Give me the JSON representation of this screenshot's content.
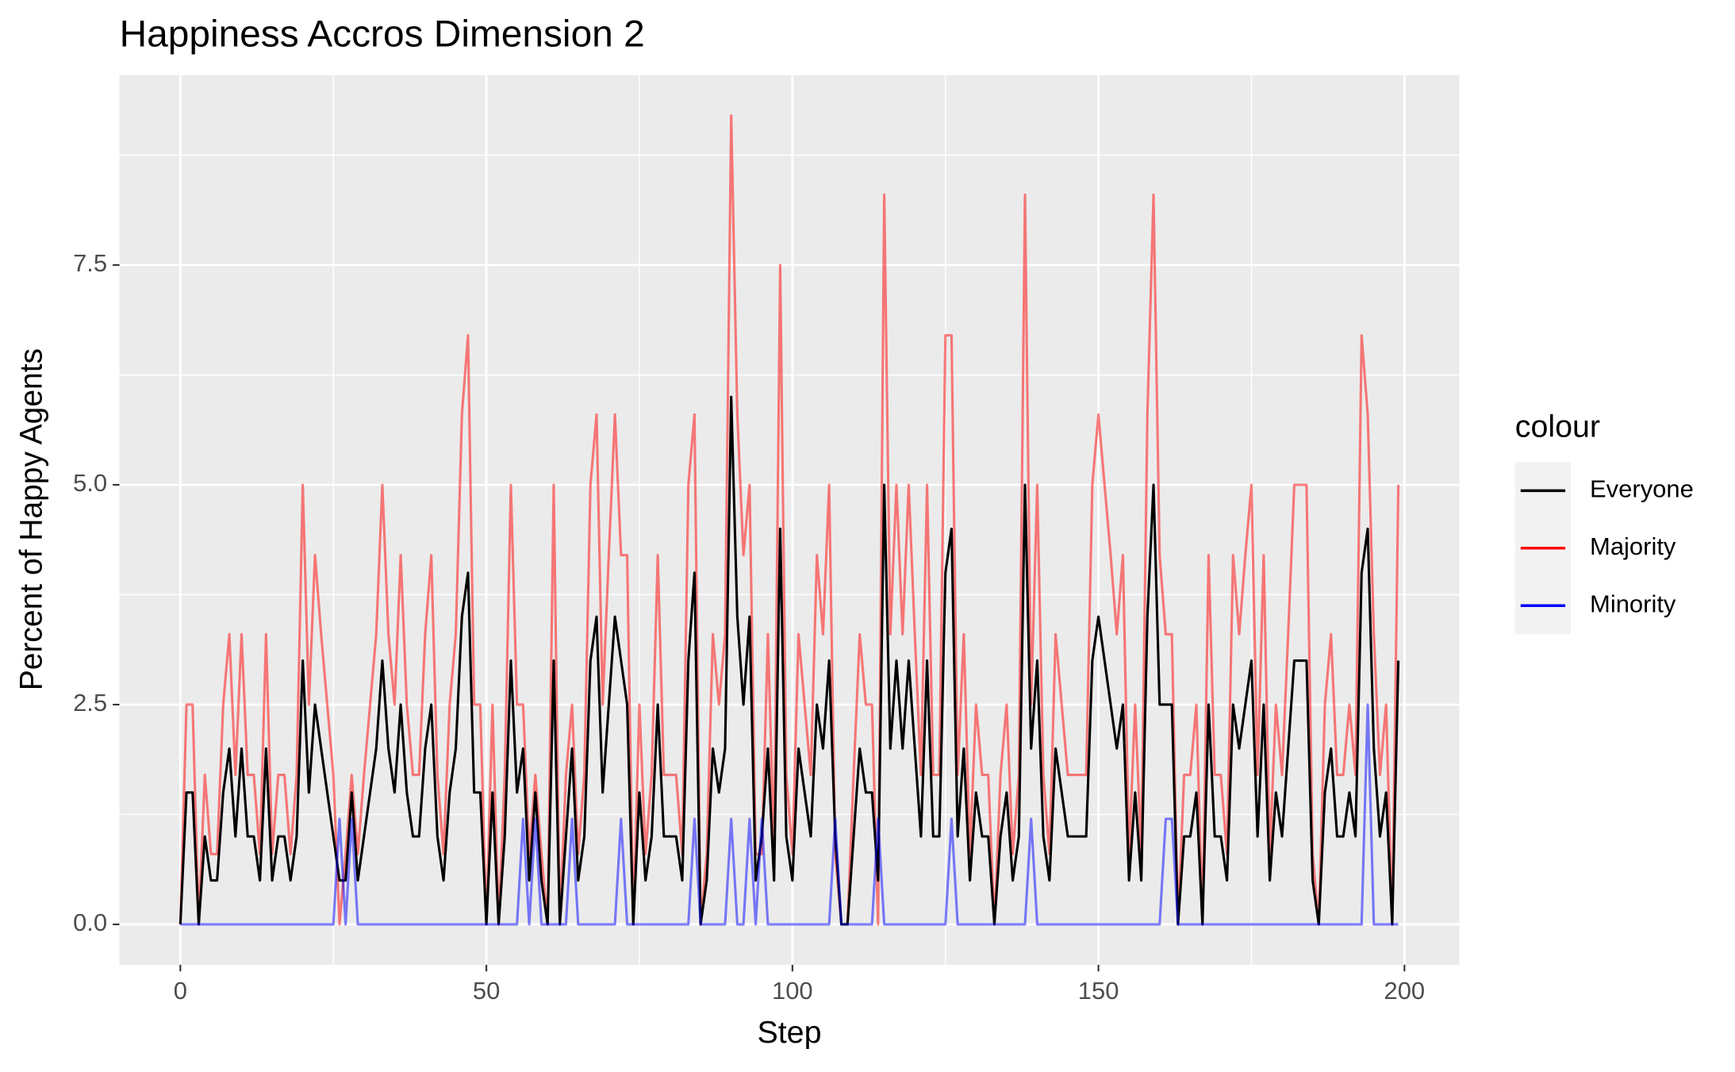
{
  "chart_data": {
    "type": "line",
    "title": "Happiness Accros Dimension 2",
    "xlabel": "Step",
    "ylabel": "Percent of Happy Agents",
    "legend_title": "colour",
    "legend_position": "right",
    "grid": true,
    "xlim": [
      -9.95,
      208.95
    ],
    "ylim": [
      -0.46,
      9.66
    ],
    "xticks": [
      0,
      50,
      100,
      150,
      200
    ],
    "yticks": [
      {
        "value": 0,
        "label": "0.0"
      },
      2.5,
      {
        "value": 5,
        "label": "5.0"
      },
      7.5
    ],
    "x_minor_ticks": [
      25,
      75,
      125,
      175
    ],
    "y_minor_ticks": [
      1.25,
      3.75,
      6.25,
      8.75
    ],
    "x": [
      0,
      1,
      2,
      3,
      4,
      5,
      6,
      7,
      8,
      9,
      10,
      11,
      12,
      13,
      14,
      15,
      16,
      17,
      18,
      19,
      20,
      21,
      22,
      23,
      24,
      25,
      26,
      27,
      28,
      29,
      30,
      31,
      32,
      33,
      34,
      35,
      36,
      37,
      38,
      39,
      40,
      41,
      42,
      43,
      44,
      45,
      46,
      47,
      48,
      49,
      50,
      51,
      52,
      53,
      54,
      55,
      56,
      57,
      58,
      59,
      60,
      61,
      62,
      63,
      64,
      65,
      66,
      67,
      68,
      69,
      70,
      71,
      72,
      73,
      74,
      75,
      76,
      77,
      78,
      79,
      80,
      81,
      82,
      83,
      84,
      85,
      86,
      87,
      88,
      89,
      90,
      91,
      92,
      93,
      94,
      95,
      96,
      97,
      98,
      99,
      100,
      101,
      102,
      103,
      104,
      105,
      106,
      107,
      108,
      109,
      110,
      111,
      112,
      113,
      114,
      115,
      116,
      117,
      118,
      119,
      120,
      121,
      122,
      123,
      124,
      125,
      126,
      127,
      128,
      129,
      130,
      131,
      132,
      133,
      134,
      135,
      136,
      137,
      138,
      139,
      140,
      141,
      142,
      143,
      144,
      145,
      146,
      147,
      148,
      149,
      150,
      151,
      152,
      153,
      154,
      155,
      156,
      157,
      158,
      159,
      160,
      161,
      162,
      163,
      164,
      165,
      166,
      167,
      168,
      169,
      170,
      171,
      172,
      173,
      174,
      175,
      176,
      177,
      178,
      179,
      180,
      181,
      182,
      183,
      184,
      185,
      186,
      187,
      188,
      189,
      190,
      191,
      192,
      193,
      194,
      195,
      196,
      197,
      198,
      199
    ],
    "series": [
      {
        "name": "Majority",
        "color": "#ff0000",
        "opacity": 0.5,
        "values": [
          0,
          2.5,
          2.5,
          0,
          1.7,
          0.8,
          0.8,
          2.5,
          3.3,
          1.7,
          3.3,
          1.7,
          1.7,
          0.8,
          3.3,
          0.8,
          1.7,
          1.7,
          0.8,
          1.7,
          5,
          2.5,
          4.2,
          3.3,
          2.5,
          1.7,
          0,
          0.8,
          1.7,
          0.8,
          1.7,
          2.5,
          3.3,
          5,
          3.3,
          2.5,
          4.2,
          2.5,
          1.7,
          1.7,
          3.3,
          4.2,
          1.7,
          0.8,
          2.5,
          3.3,
          5.8,
          6.7,
          2.5,
          2.5,
          0,
          2.5,
          0,
          1.7,
          5,
          2.5,
          2.5,
          0.8,
          1.7,
          0.8,
          0,
          5,
          0,
          1.7,
          2.5,
          0.8,
          1.7,
          5,
          5.8,
          2.5,
          4.2,
          5.8,
          4.2,
          4.2,
          0,
          2.5,
          0.8,
          1.7,
          4.2,
          1.7,
          1.7,
          1.7,
          0.8,
          5,
          5.8,
          0,
          0.8,
          3.3,
          2.5,
          3.3,
          9.2,
          5.8,
          4.2,
          5,
          0.8,
          0.8,
          3.3,
          0.8,
          7.5,
          1.7,
          0.8,
          3.3,
          2.5,
          1.7,
          4.2,
          3.3,
          5,
          0.8,
          0,
          0,
          1.7,
          3.3,
          2.5,
          2.5,
          0,
          8.3,
          3.3,
          5,
          3.3,
          5,
          3.3,
          1.7,
          5,
          1.7,
          1.7,
          6.7,
          6.7,
          1.7,
          3.3,
          0.8,
          2.5,
          1.7,
          1.7,
          0,
          1.7,
          2.5,
          0.8,
          1.7,
          8.3,
          2.5,
          5,
          1.7,
          0.8,
          3.3,
          2.5,
          1.7,
          1.7,
          1.7,
          1.7,
          5,
          5.8,
          5,
          4.2,
          3.3,
          4.2,
          0.8,
          2.5,
          0.8,
          5.8,
          8.3,
          4.2,
          3.3,
          3.3,
          0,
          1.7,
          1.7,
          2.5,
          0,
          4.2,
          1.7,
          1.7,
          0.8,
          4.2,
          3.3,
          4.2,
          5,
          1.7,
          4.2,
          0.8,
          2.5,
          1.7,
          3.3,
          5,
          5,
          5,
          0.8,
          0,
          2.5,
          3.3,
          1.7,
          1.7,
          2.5,
          1.7,
          6.7,
          5.8,
          3.3,
          1.7,
          2.5,
          0,
          5
        ]
      },
      {
        "name": "Everyone",
        "color": "#000000",
        "opacity": 1,
        "values": [
          0,
          1.5,
          1.5,
          0,
          1,
          0.5,
          0.5,
          1.5,
          2,
          1,
          2,
          1,
          1,
          0.5,
          2,
          0.5,
          1,
          1,
          0.5,
          1,
          3,
          1.5,
          2.5,
          2,
          1.5,
          1,
          0.5,
          0.5,
          1.5,
          0.5,
          1,
          1.5,
          2,
          3,
          2,
          1.5,
          2.5,
          1.5,
          1,
          1,
          2,
          2.5,
          1,
          0.5,
          1.5,
          2,
          3.5,
          4,
          1.5,
          1.5,
          0,
          1.5,
          0,
          1,
          3,
          1.5,
          2,
          0.5,
          1.5,
          0.5,
          0,
          3,
          0,
          1,
          2,
          0.5,
          1,
          3,
          3.5,
          1.5,
          2.5,
          3.5,
          3,
          2.5,
          0,
          1.5,
          0.5,
          1,
          2.5,
          1,
          1,
          1,
          0.5,
          3,
          4,
          0,
          0.5,
          2,
          1.5,
          2,
          6,
          3.5,
          2.5,
          3.5,
          0.5,
          1,
          2,
          0.5,
          4.5,
          1,
          0.5,
          2,
          1.5,
          1,
          2.5,
          2,
          3,
          1,
          0,
          0,
          1,
          2,
          1.5,
          1.5,
          0.5,
          5,
          2,
          3,
          2,
          3,
          2,
          1,
          3,
          1,
          1,
          4,
          4.5,
          1,
          2,
          0.5,
          1.5,
          1,
          1,
          0,
          1,
          1.5,
          0.5,
          1,
          5,
          2,
          3,
          1,
          0.5,
          2,
          1.5,
          1,
          1,
          1,
          1,
          3,
          3.5,
          3,
          2.5,
          2,
          2.5,
          0.5,
          1.5,
          0.5,
          3.5,
          5,
          2.5,
          2.5,
          2.5,
          0,
          1,
          1,
          1.5,
          0,
          2.5,
          1,
          1,
          0.5,
          2.5,
          2,
          2.5,
          3,
          1,
          2.5,
          0.5,
          1.5,
          1,
          2,
          3,
          3,
          3,
          0.5,
          0,
          1.5,
          2,
          1,
          1,
          1.5,
          1,
          4,
          4.5,
          2,
          1,
          1.5,
          0,
          3
        ]
      },
      {
        "name": "Minority",
        "color": "#0000ff",
        "opacity": 0.5,
        "values": [
          0,
          0,
          0,
          0,
          0,
          0,
          0,
          0,
          0,
          0,
          0,
          0,
          0,
          0,
          0,
          0,
          0,
          0,
          0,
          0,
          0,
          0,
          0,
          0,
          0,
          0,
          1.2,
          0,
          1.2,
          0,
          0,
          0,
          0,
          0,
          0,
          0,
          0,
          0,
          0,
          0,
          0,
          0,
          0,
          0,
          0,
          0,
          0,
          0,
          0,
          0,
          0,
          0,
          0,
          0,
          0,
          0,
          1.2,
          0,
          1.2,
          0,
          0,
          0,
          0,
          0,
          1.2,
          0,
          0,
          0,
          0,
          0,
          0,
          0,
          1.2,
          0,
          0,
          0,
          0,
          0,
          0,
          0,
          0,
          0,
          0,
          0,
          1.2,
          0,
          0,
          0,
          0,
          0,
          1.2,
          0,
          0,
          1.2,
          0,
          1.2,
          0,
          0,
          0,
          0,
          0,
          0,
          0,
          0,
          0,
          0,
          0,
          1.2,
          0,
          0,
          0,
          0,
          0,
          0,
          1.2,
          0,
          0,
          0,
          0,
          0,
          0,
          0,
          0,
          0,
          0,
          0,
          1.2,
          0,
          0,
          0,
          0,
          0,
          0,
          0,
          0,
          0,
          0,
          0,
          0,
          1.2,
          0,
          0,
          0,
          0,
          0,
          0,
          0,
          0,
          0,
          0,
          0,
          0,
          0,
          0,
          0,
          0,
          0,
          0,
          0,
          0,
          0,
          1.2,
          1.2,
          0,
          0,
          0,
          0,
          0,
          0,
          0,
          0,
          0,
          0,
          0,
          0,
          0,
          0,
          0,
          0,
          0,
          0,
          0,
          0,
          0,
          0,
          0,
          0,
          0,
          0,
          0,
          0,
          0,
          0,
          0,
          2.5,
          0,
          0,
          0,
          0,
          0
        ]
      }
    ],
    "legend_order": [
      1,
      0,
      2
    ]
  }
}
